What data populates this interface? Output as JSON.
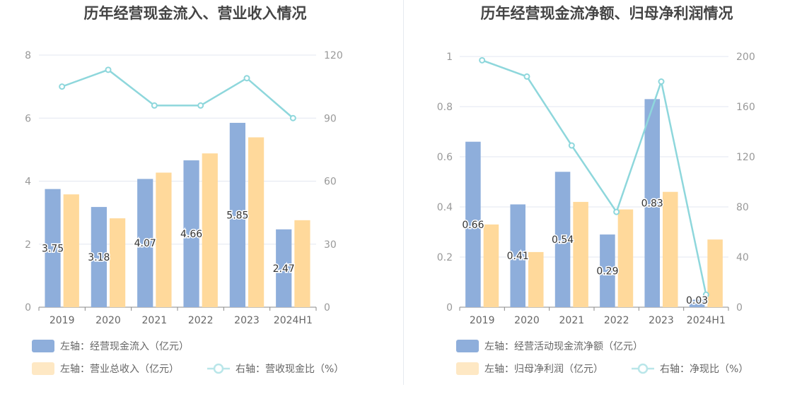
{
  "chart_data": [
    {
      "type": "bar",
      "title": "历年经营现金流入、营业收入情况",
      "categories": [
        "2019",
        "2020",
        "2021",
        "2022",
        "2023",
        "2024H1"
      ],
      "series": [
        {
          "name": "左轴：经营现金流入（亿元）",
          "type": "bar",
          "axis": "left",
          "color": "#8eaedb",
          "values": [
            3.75,
            3.18,
            4.07,
            4.66,
            5.85,
            2.47
          ],
          "labels_shown": true
        },
        {
          "name": "左轴：营业总收入（亿元）",
          "type": "bar",
          "axis": "left",
          "color": "#ffd99b",
          "values": [
            3.58,
            2.82,
            4.27,
            4.88,
            5.39,
            2.76
          ],
          "labels_shown": false
        },
        {
          "name": "右轴：营收现金比（%）",
          "type": "line",
          "axis": "right",
          "color": "#8ed7dc",
          "values": [
            105,
            113,
            96,
            96,
            109,
            90
          ],
          "labels_shown": false
        }
      ],
      "y_left": {
        "ylim": [
          0,
          8
        ],
        "ticks": [
          "0",
          "2",
          "4",
          "6",
          "8"
        ]
      },
      "y_right": {
        "ylim": [
          0,
          120
        ],
        "ticks": [
          "0",
          "30",
          "60",
          "90",
          "120"
        ]
      },
      "grid": true,
      "legend_position": "bottom"
    },
    {
      "type": "bar",
      "title": "历年经营现金流净额、归母净利润情况",
      "categories": [
        "2019",
        "2020",
        "2021",
        "2022",
        "2023",
        "2024H1"
      ],
      "series": [
        {
          "name": "左轴：经营活动现金流净额（亿元）",
          "type": "bar",
          "axis": "left",
          "color": "#8eaedb",
          "values": [
            0.66,
            0.41,
            0.54,
            0.29,
            0.83,
            0.03
          ],
          "labels_shown": true
        },
        {
          "name": "左轴：归母净利润（亿元）",
          "type": "bar",
          "axis": "left",
          "color": "#ffd99b",
          "values": [
            0.33,
            0.22,
            0.42,
            0.39,
            0.46,
            0.27
          ],
          "labels_shown": false
        },
        {
          "name": "右轴：净现比（%）",
          "type": "line",
          "axis": "right",
          "color": "#8ed7dc",
          "values": [
            197,
            184,
            129,
            76,
            180,
            10
          ],
          "labels_shown": false
        }
      ],
      "y_left": {
        "ylim": [
          0,
          1
        ],
        "ticks": [
          "0",
          "0.2",
          "0.4",
          "0.6",
          "0.8",
          "1"
        ]
      },
      "y_right": {
        "ylim": [
          0,
          200
        ],
        "ticks": [
          "0",
          "40",
          "80",
          "120",
          "160",
          "200"
        ]
      },
      "grid": true,
      "legend_position": "bottom"
    }
  ]
}
